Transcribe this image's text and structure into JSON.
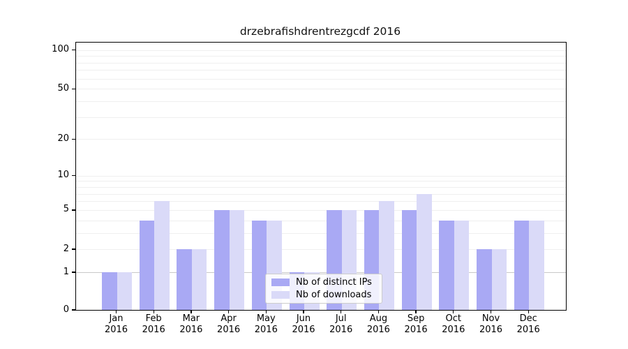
{
  "chart_data": {
    "type": "bar",
    "title": "drzebrafishdrentrezgcdf 2016",
    "categories": [
      {
        "month": "Jan",
        "year": "2016"
      },
      {
        "month": "Feb",
        "year": "2016"
      },
      {
        "month": "Mar",
        "year": "2016"
      },
      {
        "month": "Apr",
        "year": "2016"
      },
      {
        "month": "May",
        "year": "2016"
      },
      {
        "month": "Jun",
        "year": "2016"
      },
      {
        "month": "Jul",
        "year": "2016"
      },
      {
        "month": "Aug",
        "year": "2016"
      },
      {
        "month": "Sep",
        "year": "2016"
      },
      {
        "month": "Oct",
        "year": "2016"
      },
      {
        "month": "Nov",
        "year": "2016"
      },
      {
        "month": "Dec",
        "year": "2016"
      }
    ],
    "series": [
      {
        "name": "Nb of distinct IPs",
        "color": "#a9a9f4",
        "values": [
          1,
          4,
          2,
          5,
          4,
          1,
          5,
          5,
          5,
          4,
          2,
          4
        ]
      },
      {
        "name": "Nb of downloads",
        "color": "#dadaf8",
        "values": [
          1,
          6,
          2,
          5,
          4,
          1,
          5,
          6,
          7,
          4,
          2,
          4
        ]
      }
    ],
    "yticks": [
      0,
      1,
      2,
      5,
      10,
      20,
      50,
      100
    ],
    "gridline_values": [
      1,
      2,
      3,
      4,
      5,
      6,
      7,
      8,
      9,
      10,
      20,
      30,
      40,
      50,
      60,
      70,
      80,
      90,
      100
    ],
    "emphasized_gridline": 1,
    "scale": "log10(1+x)",
    "ylim": [
      0,
      114
    ],
    "legend": {
      "position": "lower center",
      "entries": [
        "Nb of distinct IPs",
        "Nb of downloads"
      ]
    },
    "colors": {
      "distinct_ips": "#a9a9f4",
      "downloads": "#dadaf8",
      "axis": "#000000",
      "gridline_minor": "#efefef",
      "gridline_major": "#c9c9c9",
      "background": "#ffffff"
    }
  }
}
